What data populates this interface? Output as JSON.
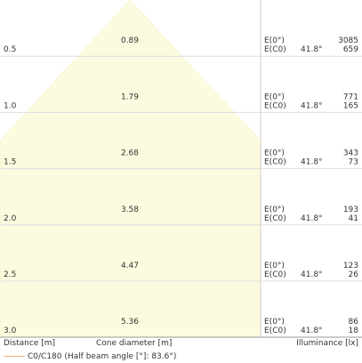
{
  "chart_data": {
    "type": "table",
    "distance_unit_label": "Distance [m]",
    "diameter_label": "Cone diameter [m]",
    "illuminance_label": "Illuminance [lx]",
    "legend": "C0/C180 (Half beam angle [°]: 83.6°)",
    "half_beam_angle": 83.6,
    "angle_label": "41.8°",
    "e0_label": "E(0°)",
    "ec0_label": "E(C0)",
    "rows": [
      {
        "distance": "0.5",
        "diameter": "0.89",
        "e0": "3085",
        "ec0": "659"
      },
      {
        "distance": "1.0",
        "diameter": "1.79",
        "e0": "771",
        "ec0": "165"
      },
      {
        "distance": "1.5",
        "diameter": "2.68",
        "e0": "343",
        "ec0": "73"
      },
      {
        "distance": "2.0",
        "diameter": "3.58",
        "e0": "193",
        "ec0": "41"
      },
      {
        "distance": "2.5",
        "diameter": "4.47",
        "e0": "123",
        "ec0": "26"
      },
      {
        "distance": "3.0",
        "diameter": "5.36",
        "e0": "86",
        "ec0": "18"
      }
    ],
    "colors": {
      "cone_fill": "#fdfbdf",
      "grid": "#dddddd",
      "legend_line": "#f0b27a"
    }
  }
}
